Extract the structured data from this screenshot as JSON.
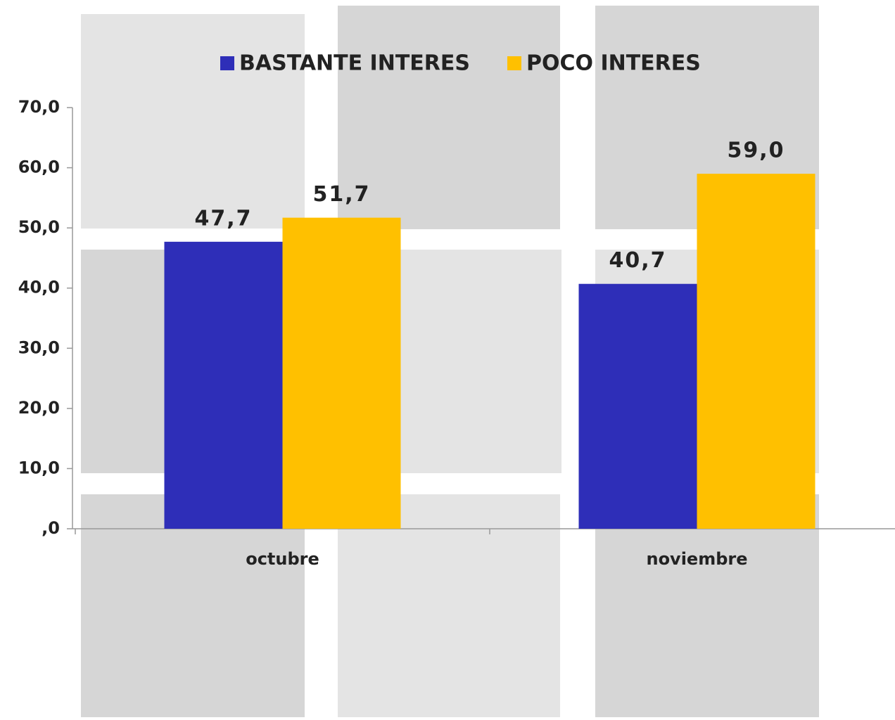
{
  "chart_data": {
    "type": "bar",
    "categories": [
      "octubre",
      "noviembre"
    ],
    "series": [
      {
        "name": "BASTANTE INTERES",
        "color": "#2e2eb8",
        "values": [
          47.7,
          40.7
        ],
        "value_labels": [
          "47,7",
          "40,7"
        ]
      },
      {
        "name": "POCO INTERES",
        "color": "#ffc000",
        "values": [
          51.7,
          59.0
        ],
        "value_labels": [
          "51,7",
          "59,0"
        ]
      }
    ],
    "ylim": [
      0,
      70
    ],
    "yticks": [
      {
        "value": 0,
        "label": ",0"
      },
      {
        "value": 10,
        "label": "10,0"
      },
      {
        "value": 20,
        "label": "20,0"
      },
      {
        "value": 30,
        "label": "30,0"
      },
      {
        "value": 40,
        "label": "40,0"
      },
      {
        "value": 50,
        "label": "50,0"
      },
      {
        "value": 60,
        "label": "60,0"
      },
      {
        "value": 70,
        "label": "70,0"
      }
    ],
    "legend": "top"
  }
}
